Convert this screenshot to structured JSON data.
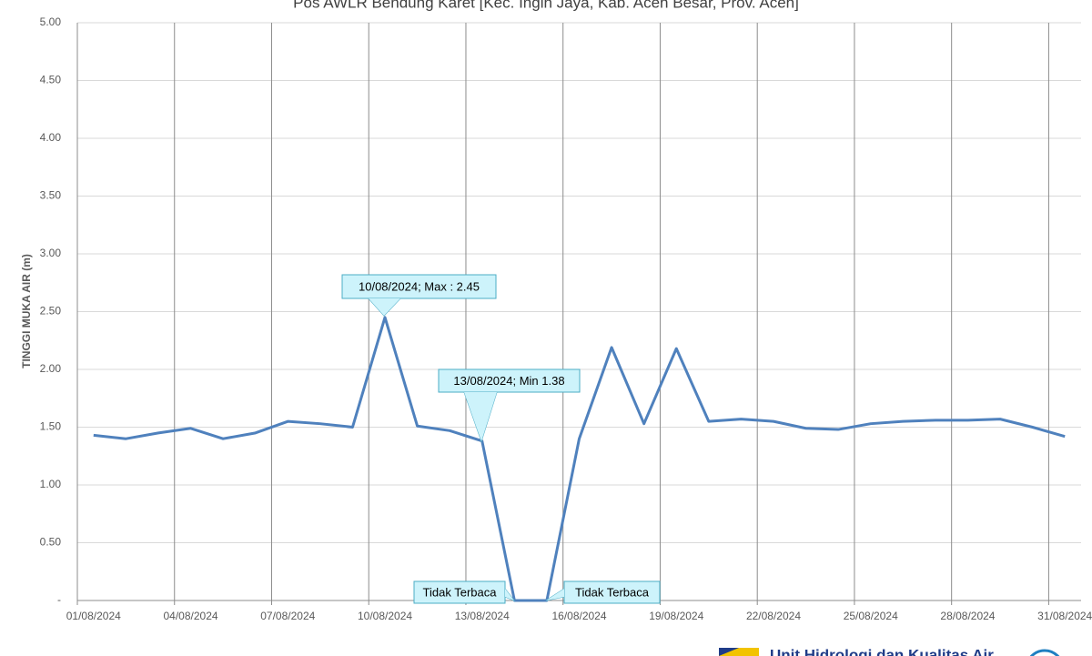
{
  "chart_data": {
    "type": "line",
    "title": "Pos AWLR Bendung Karet [Kec. Ingin Jaya, Kab. Aceh Besar, Prov. Aceh]",
    "y_label": "TINGGI MUKA AIR (m)",
    "categories": [
      "01/08/2024",
      null,
      null,
      "04/08/2024",
      null,
      null,
      "07/08/2024",
      null,
      null,
      "10/08/2024",
      null,
      null,
      "13/08/2024",
      null,
      null,
      "16/08/2024",
      null,
      null,
      "19/08/2024",
      null,
      null,
      "22/08/2024",
      null,
      null,
      "25/08/2024",
      null,
      null,
      "28/08/2024",
      null,
      null,
      "31/08/2024"
    ],
    "series": [
      {
        "name": "Tinggi Muka Air",
        "color": "#4f81bd",
        "values": [
          1.43,
          1.4,
          1.45,
          1.49,
          1.4,
          1.45,
          1.55,
          1.53,
          1.5,
          2.45,
          1.51,
          1.47,
          1.38,
          0,
          0,
          1.4,
          2.19,
          1.53,
          2.18,
          1.55,
          1.57,
          1.55,
          1.49,
          1.48,
          1.53,
          1.55,
          1.56,
          1.56,
          1.57,
          1.5,
          1.42
        ]
      }
    ],
    "ylim": [
      0,
      5
    ],
    "yticks": [
      {
        "value": 0,
        "label": "-"
      },
      {
        "value": 0.5,
        "label": "0.50"
      },
      {
        "value": 1,
        "label": "1.00"
      },
      {
        "value": 1.5,
        "label": "1.50"
      },
      {
        "value": 2,
        "label": "2.00"
      },
      {
        "value": 2.5,
        "label": "2.50"
      },
      {
        "value": 3,
        "label": "3.00"
      },
      {
        "value": 3.5,
        "label": "3.50"
      },
      {
        "value": 4,
        "label": "4.00"
      },
      {
        "value": 4.5,
        "label": "4.50"
      },
      {
        "value": 5,
        "label": "5.00"
      }
    ],
    "grid": true,
    "annotations": [
      "10/08/2024; Max : 2.45",
      "13/08/2024; Min 1.38",
      "Tidak Terbaca",
      "Tidak Terbaca"
    ],
    "footer": "Unit Hidrologi dan Kualitas Air"
  }
}
